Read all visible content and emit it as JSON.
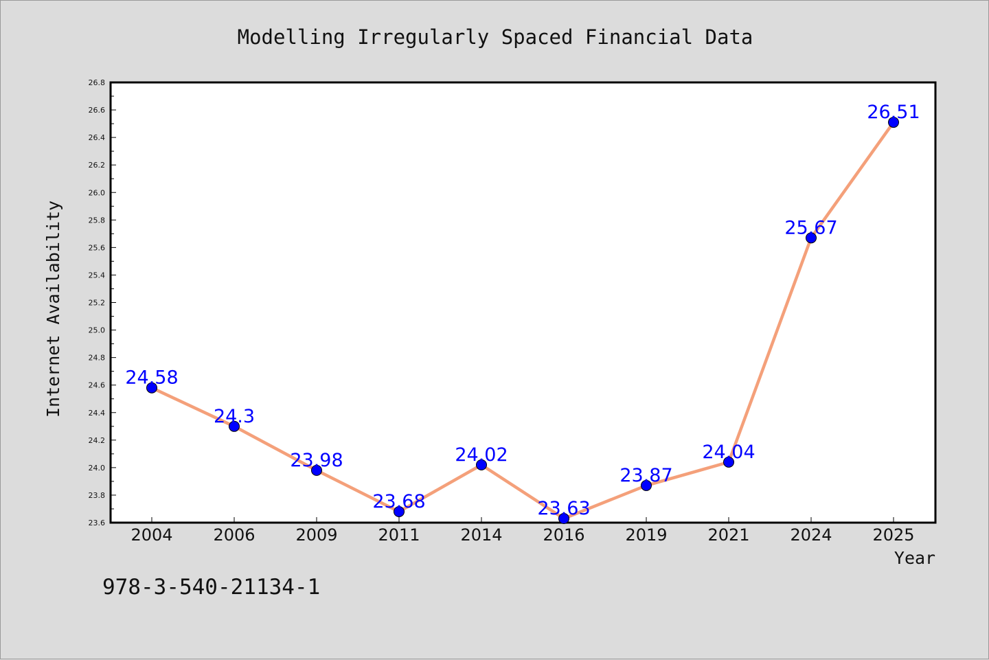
{
  "figure": {
    "background": "#dcdcdc",
    "isbn": "978-3-540-21134-1"
  },
  "chart_data": {
    "type": "line",
    "title": "Modelling Irregularly Spaced Financial Data",
    "xlabel": "Year",
    "ylabel": "Internet Availability",
    "categories": [
      "2004",
      "2006",
      "2009",
      "2011",
      "2014",
      "2016",
      "2019",
      "2021",
      "2024",
      "2025"
    ],
    "series": [
      {
        "values": [
          24.58,
          24.3,
          23.98,
          23.68,
          24.02,
          23.63,
          23.87,
          24.04,
          25.67,
          26.51
        ],
        "data_labels": [
          "24.58",
          "24.3",
          "23.98",
          "23.68",
          "24.02",
          "23.63",
          "23.87",
          "24.04",
          "25.67",
          "26.51"
        ],
        "line_color": "#f4a07a",
        "marker_color": "#0000ff"
      }
    ],
    "ylim": [
      23.6,
      26.8
    ],
    "yticks": [
      "23.6",
      "23.8",
      "24.0",
      "24.2",
      "24.4",
      "24.6",
      "24.8",
      "25.0",
      "25.2",
      "25.4",
      "25.6",
      "25.8",
      "26.0",
      "26.2",
      "26.4",
      "26.6",
      "26.8"
    ],
    "grid": false,
    "legend": "none",
    "plot_background": "#ffffff",
    "data_label_color": "#0000ff"
  }
}
